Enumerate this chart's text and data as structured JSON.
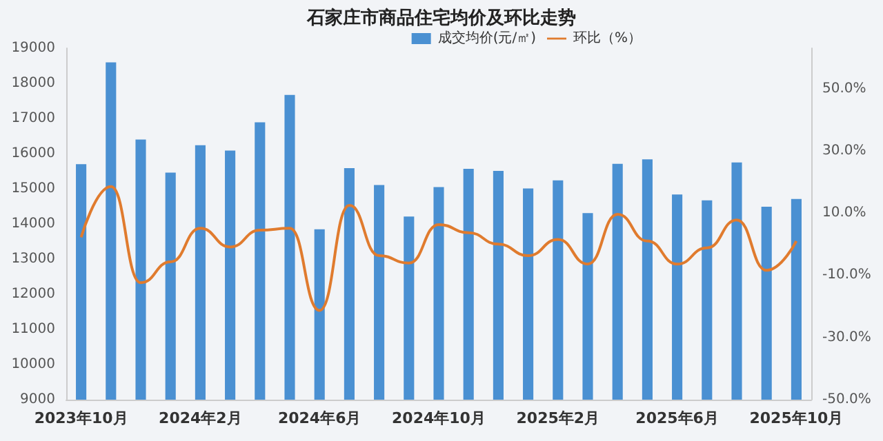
{
  "chart_data": {
    "type": "bar",
    "title": "石家庄市商品住宅均价及环比走势",
    "categories": [
      "2023年10月",
      null,
      null,
      null,
      "2024年2月",
      null,
      null,
      null,
      "2024年6月",
      null,
      null,
      null,
      "2024年10月",
      null,
      null,
      null,
      "2025年2月",
      null,
      null,
      null,
      "2025年6月",
      null,
      null,
      null,
      "2025年10月"
    ],
    "series": [
      {
        "name": "成交均价(元/㎡)",
        "color": "#4a90d2",
        "values": [
          15700,
          18600,
          16400,
          15460,
          16240,
          16090,
          16890,
          17670,
          13850,
          15590,
          15110,
          14210,
          15050,
          15570,
          15510,
          15010,
          15240,
          14310,
          15710,
          15840,
          14840,
          14670,
          15750,
          14490,
          14710
        ]
      },
      {
        "name": "环比（%）",
        "type": "line",
        "axis": "y2",
        "color": "#e07b2e",
        "marker": "none",
        "values": [
          2.2,
          18.5,
          -12.4,
          -5.7,
          5.1,
          -0.9,
          4.5,
          5.1,
          -21.3,
          12.5,
          -3.7,
          -6.1,
          6.3,
          3.7,
          0,
          -3.7,
          1.5,
          -6.4,
          9.6,
          1,
          -6.4,
          -1.2,
          7.8,
          -8.4,
          1
        ]
      }
    ],
    "ylim": [
      9000,
      19000
    ],
    "yticks": [
      9000,
      10000,
      11000,
      12000,
      13000,
      14000,
      15000,
      16000,
      17000,
      18000,
      19000
    ],
    "y2lim": [
      -50,
      63
    ],
    "y2ticks": [
      {
        "value": -50,
        "label": "-50.0%"
      },
      {
        "value": -30,
        "label": "-30.0%"
      },
      {
        "value": -10,
        "label": "-10.0%"
      },
      {
        "value": 10,
        "label": "10.0%"
      },
      {
        "value": 30,
        "label": "30.0%"
      },
      {
        "value": 50,
        "label": "50.0%"
      }
    ],
    "grid": false,
    "legend": "top right"
  }
}
